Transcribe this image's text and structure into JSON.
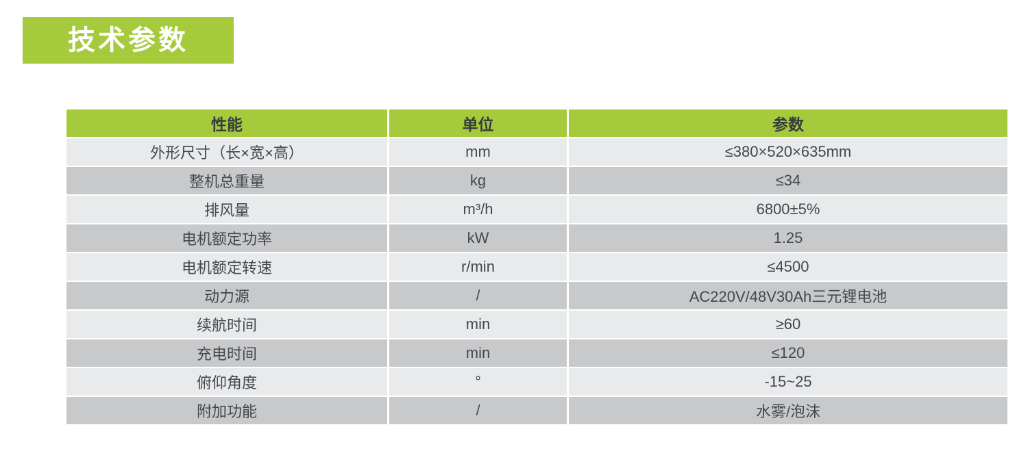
{
  "section": {
    "title": "技术参数"
  },
  "table": {
    "headers": [
      "性能",
      "单位",
      "参数"
    ],
    "rows": [
      {
        "property": "外形尺寸（长×宽×高）",
        "unit": "mm",
        "value": "≤380×520×635mm"
      },
      {
        "property": "整机总重量",
        "unit": "kg",
        "value": "≤34"
      },
      {
        "property": "排风量",
        "unit": "m³/h",
        "value": "6800±5%"
      },
      {
        "property": "电机额定功率",
        "unit": "kW",
        "value": "1.25"
      },
      {
        "property": "电机额定转速",
        "unit": "r/min",
        "value": "≤4500"
      },
      {
        "property": "动力源",
        "unit": "/",
        "value": "AC220V/48V30Ah三元锂电池"
      },
      {
        "property": "续航时间",
        "unit": "min",
        "value": "≥60"
      },
      {
        "property": "充电时间",
        "unit": "min",
        "value": "≤120"
      },
      {
        "property": "俯仰角度",
        "unit": "°",
        "value": "-15~25"
      },
      {
        "property": "附加功能",
        "unit": "/",
        "value": "水雾/泡沫"
      }
    ]
  },
  "colors": {
    "accent_green": "#a5cb3d",
    "row_light": "#e9eaec",
    "row_dark": "#c8c9cb",
    "header_text": "#373b3e",
    "body_text": "#45484b",
    "title_text": "#ffffff"
  }
}
